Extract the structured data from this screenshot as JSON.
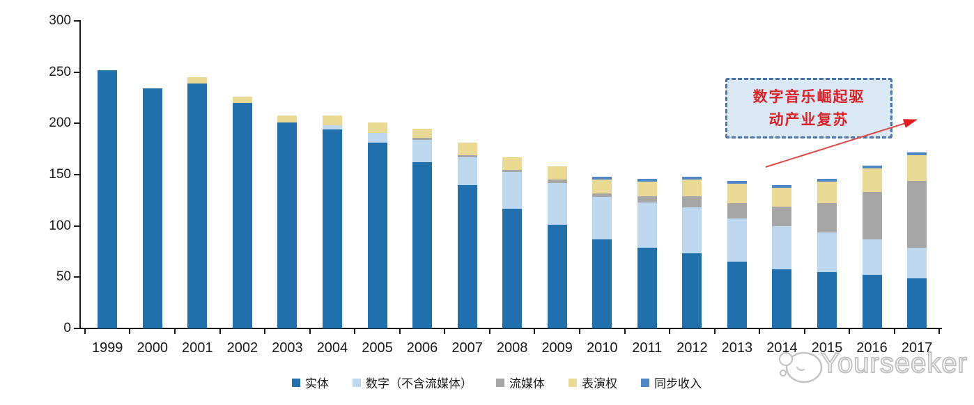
{
  "chart_data": {
    "type": "bar",
    "stacked": true,
    "title": "",
    "xlabel": "",
    "ylabel": "",
    "ylim": [
      0,
      300
    ],
    "yticks": [
      0,
      50,
      100,
      150,
      200,
      250,
      300
    ],
    "grid": false,
    "legend_position": "bottom",
    "categories": [
      "1999",
      "2000",
      "2001",
      "2002",
      "2003",
      "2004",
      "2005",
      "2006",
      "2007",
      "2008",
      "2009",
      "2010",
      "2011",
      "2012",
      "2013",
      "2014",
      "2015",
      "2016",
      "2017"
    ],
    "series": [
      {
        "name": "实体",
        "color": "#2170ae",
        "values": [
          252,
          234,
          239,
          220,
          201,
          194,
          181,
          162,
          140,
          117,
          101,
          87,
          79,
          73,
          65,
          58,
          55,
          52,
          49
        ]
      },
      {
        "name": "数字（不含流媒体）",
        "color": "#bdd7ee",
        "values": [
          0,
          0,
          0,
          0,
          0,
          4,
          10,
          22,
          27,
          36,
          41,
          41,
          44,
          45,
          42,
          42,
          39,
          35,
          30
        ]
      },
      {
        "name": "流媒体",
        "color": "#a6a6a6",
        "values": [
          0,
          0,
          0,
          0,
          0,
          0,
          0,
          2,
          2,
          2,
          3,
          4,
          6,
          11,
          15,
          19,
          28,
          46,
          65
        ]
      },
      {
        "name": "表演权",
        "color": "#ead992",
        "values": [
          0,
          0,
          6,
          6,
          7,
          10,
          10,
          9,
          12,
          12,
          13,
          13,
          14,
          16,
          19,
          18,
          21,
          23,
          25
        ]
      },
      {
        "name": "同步收入",
        "color": "#4e87c5",
        "values": [
          0,
          0,
          0,
          0,
          0,
          0,
          0,
          0,
          0,
          0,
          0,
          3,
          3,
          3,
          3,
          3,
          3,
          3,
          3
        ]
      }
    ]
  },
  "annotation": {
    "line1": "数字音乐崛起驱",
    "line2": "动产业复苏",
    "full_text": "数字音乐崛起驱动产业复苏",
    "text_color": "#de2126",
    "box_fill": "#dae7f5",
    "box_border": "#4a73a8",
    "arrow_color": "#e04848"
  },
  "watermark": {
    "text": "Yourseeker",
    "color": "#c2c2c2"
  }
}
